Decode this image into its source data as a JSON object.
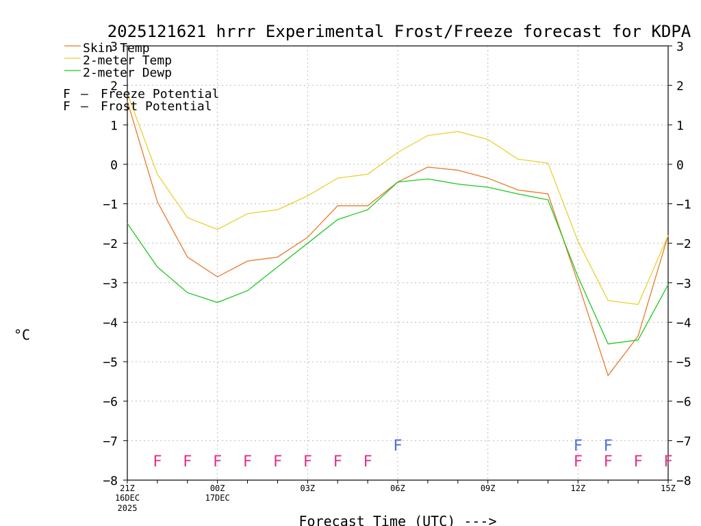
{
  "chart_data": {
    "type": "line",
    "title": "2025121621 hrrr Experimental Frost/Freeze forecast for KDPA",
    "ylabel": "°C",
    "xlabel": "Forecast Time (UTC) --->",
    "ylim": [
      -8,
      3
    ],
    "yticks": [
      3,
      2,
      1,
      0,
      -1,
      -2,
      -3,
      -4,
      -5,
      -6,
      -7,
      -8
    ],
    "ytick_labels": [
      "3",
      "2",
      "1",
      "0",
      "−1",
      "−2",
      "−3",
      "−4",
      "−5",
      "−6",
      "−7",
      "−8"
    ],
    "x_hours": [
      0,
      1,
      2,
      3,
      4,
      5,
      6,
      7,
      8,
      9,
      10,
      11,
      12,
      13,
      14,
      15,
      16,
      17,
      18
    ],
    "xticks": [
      {
        "hour": 0,
        "label": "21Z",
        "date": "16DEC",
        "year": "2025"
      },
      {
        "hour": 3,
        "label": "00Z",
        "date": "17DEC",
        "year": ""
      },
      {
        "hour": 6,
        "label": "03Z",
        "date": "",
        "year": ""
      },
      {
        "hour": 9,
        "label": "06Z",
        "date": "",
        "year": ""
      },
      {
        "hour": 12,
        "label": "09Z",
        "date": "",
        "year": ""
      },
      {
        "hour": 15,
        "label": "12Z",
        "date": "",
        "year": ""
      },
      {
        "hour": 18,
        "label": "15Z",
        "date": "",
        "year": ""
      }
    ],
    "series": [
      {
        "name": "Skin Temp",
        "color": "#e8782a",
        "values": [
          1.6,
          -0.95,
          -2.35,
          -2.85,
          -2.45,
          -2.35,
          -1.85,
          -1.05,
          -1.05,
          -0.45,
          -0.07,
          -0.15,
          -0.35,
          -0.65,
          -0.75,
          -3.0,
          -5.35,
          -4.35,
          -1.8
        ]
      },
      {
        "name": "2-meter Temp",
        "color": "#e8d02e",
        "values": [
          1.8,
          -0.25,
          -1.35,
          -1.65,
          -1.25,
          -1.15,
          -0.8,
          -0.35,
          -0.25,
          0.3,
          0.73,
          0.83,
          0.63,
          0.13,
          0.03,
          -1.95,
          -3.45,
          -3.55,
          -1.8
        ]
      },
      {
        "name": "2-meter Dewp",
        "color": "#1ec81e",
        "values": [
          -1.5,
          -2.6,
          -3.25,
          -3.5,
          -3.2,
          -2.6,
          -2.0,
          -1.4,
          -1.15,
          -0.45,
          -0.37,
          -0.5,
          -0.58,
          -0.75,
          -0.9,
          -2.85,
          -4.55,
          -4.45,
          -3.05
        ]
      }
    ],
    "flags": {
      "freeze": {
        "label": "F",
        "legend": "Freeze Potential",
        "color": "#e0308a",
        "hours": [
          1,
          2,
          3,
          4,
          5,
          6,
          7,
          8,
          15,
          16,
          17,
          18
        ]
      },
      "frost": {
        "label": "F",
        "legend": "Frost Potential",
        "color": "#4a6ee0",
        "hours": [
          9,
          15,
          16
        ]
      }
    },
    "legend_separator": "–"
  }
}
